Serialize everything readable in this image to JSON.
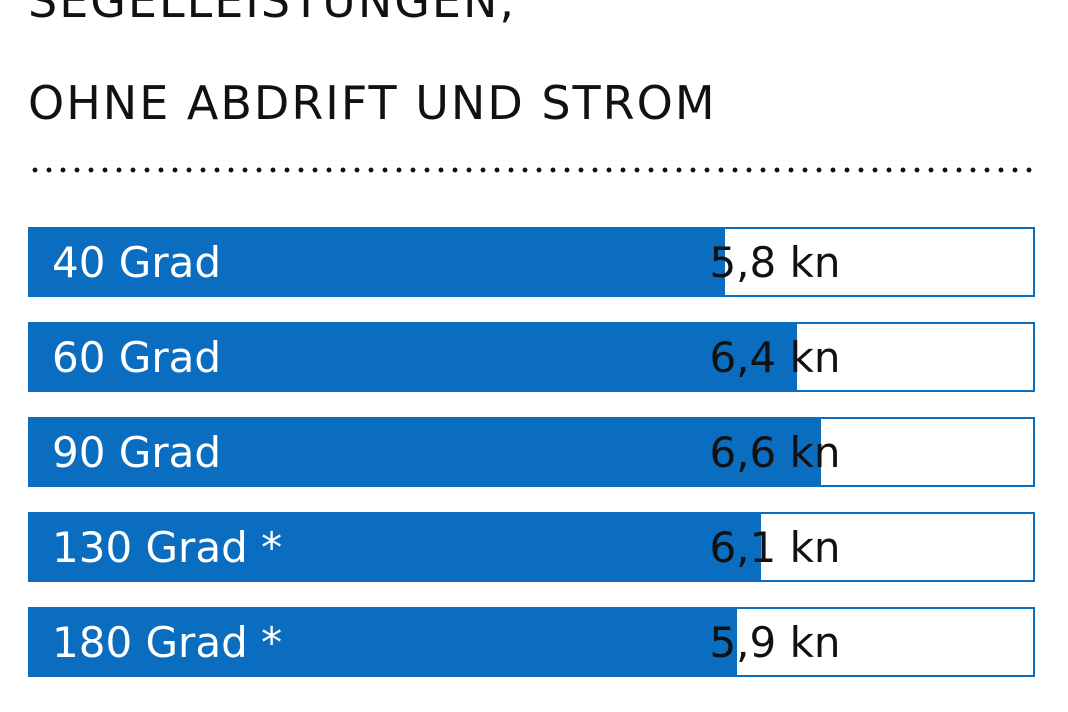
{
  "title": {
    "line1": "SEGELLEISTUNGEN,",
    "line2": "OHNE ABDRIFT UND STROM"
  },
  "colors": {
    "accent": "#0a6dbf",
    "text": "#111111",
    "background": "#ffffff"
  },
  "chart_data": {
    "type": "bar",
    "orientation": "horizontal",
    "title": "SEGELLEISTUNGEN, OHNE ABDRIFT UND STROM",
    "unit": "kn",
    "categories": [
      "40 Grad",
      "60 Grad",
      "90 Grad",
      "130 Grad *",
      "180 Grad *"
    ],
    "values": [
      5.8,
      6.4,
      6.6,
      6.1,
      5.9
    ],
    "value_labels": [
      "5,8 kn",
      "6,4 kn",
      "6,6 kn",
      "6,1 kn",
      "5,9 kn"
    ],
    "xlim": [
      0,
      8.4
    ],
    "grid": false
  }
}
